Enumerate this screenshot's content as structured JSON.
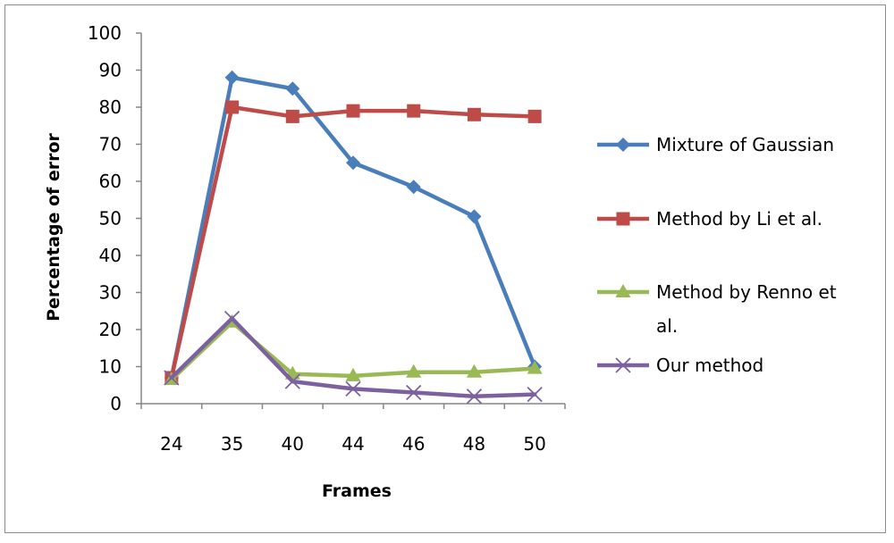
{
  "chart_data": {
    "type": "line",
    "title": "",
    "xlabel": "Frames",
    "ylabel": "Percentage of error",
    "categories": [
      "24",
      "35",
      "40",
      "44",
      "46",
      "48",
      "50"
    ],
    "ylim": [
      0,
      100
    ],
    "yticks": [
      "0",
      "10",
      "20",
      "30",
      "40",
      "50",
      "60",
      "70",
      "80",
      "90",
      "100"
    ],
    "grid": false,
    "legend_position": "right",
    "series": [
      {
        "name": "Mixture of Gaussian",
        "color": "#4a7ebb",
        "marker": "diamond",
        "values": [
          7,
          88,
          85,
          65,
          58.5,
          50.5,
          10
        ]
      },
      {
        "name": "Method by Li et al.",
        "color": "#be4b48",
        "marker": "square",
        "values": [
          7,
          80,
          77.5,
          79,
          79,
          78,
          77.5
        ]
      },
      {
        "name": "Method by Renno et al.",
        "color": "#98b954",
        "marker": "triangle",
        "values": [
          6.5,
          22,
          8,
          7.5,
          8.5,
          8.5,
          9.5
        ]
      },
      {
        "name": "Our method",
        "color": "#7d60a0",
        "marker": "x",
        "values": [
          7,
          23,
          6,
          4,
          3,
          2,
          2.5
        ]
      }
    ]
  }
}
